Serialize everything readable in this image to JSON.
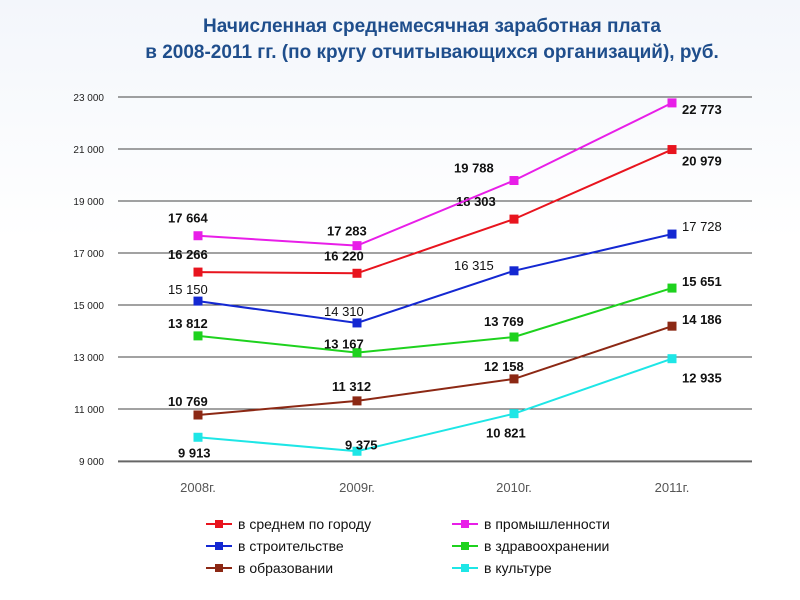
{
  "title": {
    "line1": "Начисленная среднемесячная заработная плата",
    "line2": "в 2008-2011 гг. (по кругу отчитывающихся организаций), руб."
  },
  "chart_data": {
    "type": "line",
    "categories": [
      "2008г.",
      "2009г.",
      "2010г.",
      "2011г."
    ],
    "ylim": [
      9000,
      23000
    ],
    "yticks": [
      9000,
      11000,
      13000,
      15000,
      17000,
      19000,
      21000,
      23000
    ],
    "ytick_labels": [
      "9 000",
      "11 000",
      "13 000",
      "15 000",
      "17 000",
      "19 000",
      "21 000",
      "23 000"
    ],
    "grid": true,
    "legend_position": "bottom",
    "series": [
      {
        "name": "в среднем по городу",
        "color": "#e8141e",
        "values": [
          16266,
          16220,
          18303,
          20979
        ],
        "labels": [
          "16 266",
          "16 220",
          "18 303",
          "20 979"
        ]
      },
      {
        "name": "в промышленности",
        "color": "#e81ee8",
        "values": [
          17664,
          17283,
          19788,
          22773
        ],
        "labels": [
          "17 664",
          "17 283",
          "19 788",
          "22 773"
        ]
      },
      {
        "name": "в строительстве",
        "color": "#1428d2",
        "values": [
          15150,
          14310,
          16315,
          17728
        ],
        "labels": [
          "15 150",
          "14 310",
          "16 315",
          "17 728"
        ]
      },
      {
        "name": "в здравоохранении",
        "color": "#1ed21e",
        "values": [
          13812,
          13167,
          13769,
          15651
        ],
        "labels": [
          "13 812",
          "13 167",
          "13 769",
          "15 651"
        ]
      },
      {
        "name": "в образовании",
        "color": "#8c2814",
        "values": [
          10769,
          11312,
          12158,
          14186
        ],
        "labels": [
          "10 769",
          "11 312",
          "12 158",
          "14 186"
        ]
      },
      {
        "name": "в культуре",
        "color": "#1ee6e6",
        "values": [
          9913,
          9375,
          10821,
          12935
        ],
        "labels": [
          "9 913",
          "9 375",
          "10 821",
          "12 935"
        ]
      }
    ]
  }
}
